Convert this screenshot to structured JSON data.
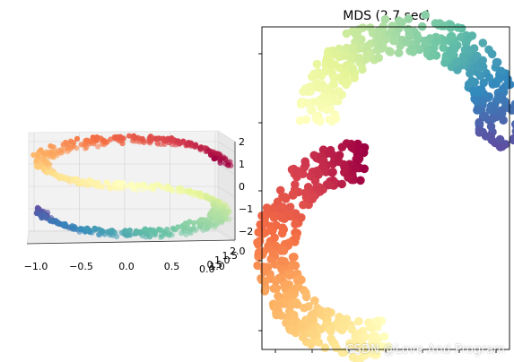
{
  "chart_data": [
    {
      "type": "scatter",
      "projection": "3d",
      "title": "",
      "colormap": "Spectral",
      "shape": "S-curve",
      "x_ticks": [
        "−1.0",
        "−0.5",
        "0.0",
        "0.5",
        "1.0"
      ],
      "y_ticks": [
        "0.0",
        "0.5",
        "1.0",
        "1.5",
        "2.0"
      ],
      "z_ticks": [
        "2",
        "1",
        "0",
        "−1",
        "−2"
      ],
      "xlim": [
        -1.0,
        1.0
      ],
      "ylim": [
        0.0,
        2.0
      ],
      "zlim": [
        -2.0,
        2.0
      ],
      "grid": true,
      "pane_color": "#f2f2f2"
    },
    {
      "type": "scatter",
      "title": "MDS (2.7 sec)",
      "colormap": "Spectral",
      "shape": "S-curve",
      "axes_ticks_labelled": false,
      "grid": false
    }
  ],
  "watermark": "CSDN @Love And Program"
}
